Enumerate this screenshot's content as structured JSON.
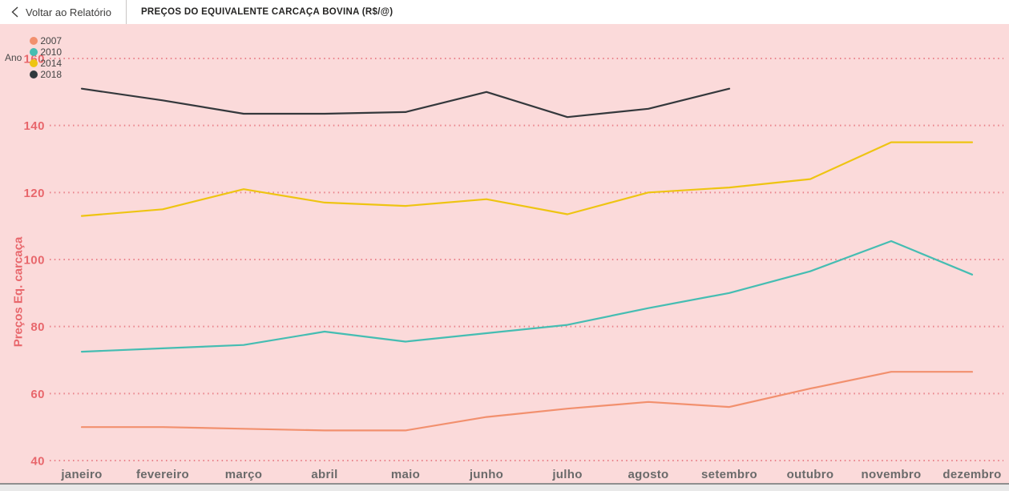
{
  "header": {
    "back_label": "Voltar ao Relatório",
    "title": "PREÇOS DO EQUIVALENTE CARCAÇA BOVINA (R$/@)"
  },
  "legend": {
    "label": "Ano",
    "items": [
      {
        "label": "2007",
        "color": "#f2906e"
      },
      {
        "label": "2010",
        "color": "#45bdb2"
      },
      {
        "label": "2014",
        "color": "#eec412"
      },
      {
        "label": "2018",
        "color": "#30393d"
      }
    ]
  },
  "colors": {
    "plot_background": "#fbdada",
    "gridline": "#e9828a",
    "y_axis_text": "#e8676c",
    "x_axis_text": "#6a6a6a"
  },
  "chart_data": {
    "type": "line",
    "title": "PREÇOS DO EQUIVALENTE CARCAÇA BOVINA (R$/@)",
    "xlabel": "",
    "ylabel": "Preços Eq. carcaça",
    "legend_title": "Ano",
    "legend_position": "top-left",
    "grid": "horizontal-dotted",
    "ylim": [
      40,
      165
    ],
    "y_ticks": [
      40,
      60,
      80,
      100,
      120,
      140,
      160
    ],
    "categories": [
      "janeiro",
      "fevereiro",
      "março",
      "abril",
      "maio",
      "junho",
      "julho",
      "agosto",
      "setembro",
      "outubro",
      "novembro",
      "dezembro"
    ],
    "series": [
      {
        "name": "2007",
        "color": "#f2906e",
        "values": [
          50,
          50,
          49.5,
          49,
          49,
          53,
          55.5,
          57.5,
          56,
          61.5,
          66.5,
          66.5
        ]
      },
      {
        "name": "2010",
        "color": "#45bdb2",
        "values": [
          72.5,
          73.5,
          74.5,
          78.5,
          75.5,
          78,
          80.5,
          85.5,
          90,
          96.5,
          105.5,
          95.5
        ]
      },
      {
        "name": "2014",
        "color": "#eec412",
        "values": [
          113,
          115,
          121,
          117,
          116,
          118,
          113.5,
          120,
          121.5,
          124,
          135,
          135
        ]
      },
      {
        "name": "2018",
        "color": "#34383c",
        "values": [
          151,
          147.5,
          143.5,
          143.5,
          144,
          150,
          142.5,
          145,
          151,
          null,
          null,
          null
        ]
      }
    ]
  }
}
